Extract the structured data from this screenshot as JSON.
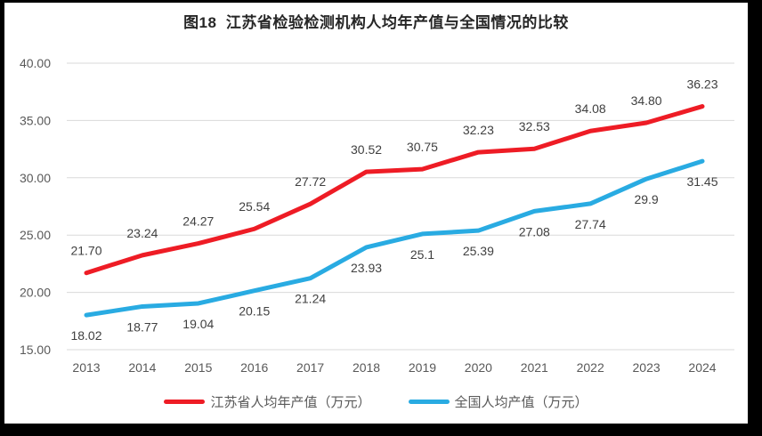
{
  "chart_data": {
    "type": "line",
    "title": "图18  江苏省检验检测机构人均年产值与全国情况的比较",
    "categories": [
      "2013",
      "2014",
      "2015",
      "2016",
      "2017",
      "2018",
      "2019",
      "2020",
      "2021",
      "2022",
      "2023",
      "2024"
    ],
    "series": [
      {
        "name": "江苏省人均年产值（万元）",
        "color": "#ee1c25",
        "values": [
          21.7,
          23.24,
          24.27,
          25.54,
          27.72,
          30.52,
          30.75,
          32.23,
          32.53,
          34.08,
          34.8,
          36.23
        ],
        "labels": [
          "21.70",
          "23.24",
          "24.27",
          "25.54",
          "27.72",
          "30.52",
          "30.75",
          "32.23",
          "32.53",
          "34.08",
          "34.80",
          "36.23"
        ],
        "label_position": "above"
      },
      {
        "name": "全国人均产值（万元）",
        "color": "#29abe2",
        "values": [
          18.02,
          18.77,
          19.04,
          20.15,
          21.24,
          23.93,
          25.1,
          25.39,
          27.08,
          27.74,
          29.9,
          31.45
        ],
        "labels": [
          "18.02",
          "18.77",
          "19.04",
          "20.15",
          "21.24",
          "23.93",
          "25.1",
          "25.39",
          "27.08",
          "27.74",
          "29.9",
          "31.45"
        ],
        "label_position": "below"
      }
    ],
    "ylim": [
      15,
      40
    ],
    "ytick_step": 5,
    "ytick_labels": [
      "15.00",
      "20.00",
      "25.00",
      "30.00",
      "35.00",
      "40.00"
    ],
    "grid": "horizontal-only",
    "legend_position": "bottom"
  },
  "colors": {
    "background": "#ffffff",
    "frame": "#000000",
    "gridline": "#d9d9d9",
    "axis_text": "#595959",
    "value_label_text": "#404040",
    "title_text": "#262626"
  }
}
